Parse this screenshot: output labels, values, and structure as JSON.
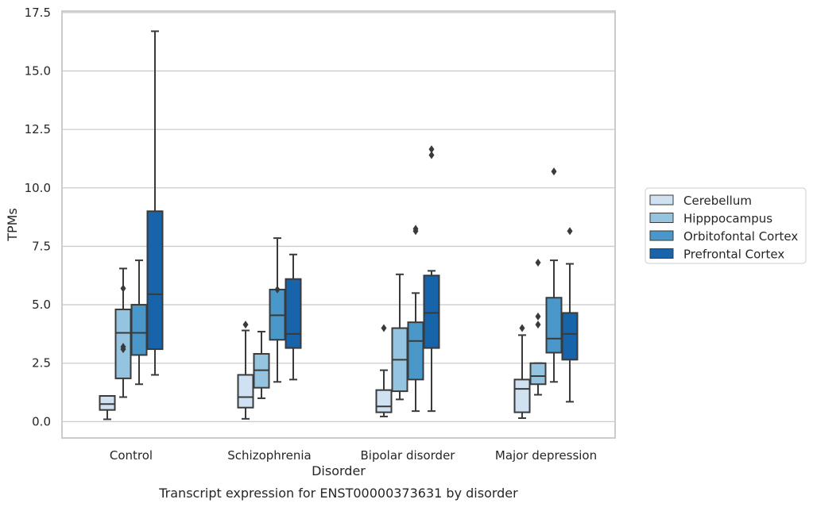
{
  "chart_data": {
    "type": "box",
    "title": "Transcript expression for ENST00000373631 by disorder",
    "xlabel": "Disorder",
    "ylabel": "TPMs",
    "ylim": [
      -0.7,
      17.5
    ],
    "yticks": [
      "0.0",
      "2.5",
      "5.0",
      "7.5",
      "10.0",
      "12.5",
      "15.0",
      "17.5"
    ],
    "grid": true,
    "legend_position": "right",
    "categories": [
      "Control",
      "Schizophrenia",
      "Bipolar disorder",
      "Major depression"
    ],
    "series": [
      {
        "name": "Cerebellum",
        "color": "#d0e1f2",
        "boxes": [
          {
            "whisker_low": 0.1,
            "q1": 0.5,
            "median": 0.75,
            "q3": 1.1,
            "whisker_high": 1.1,
            "outliers": []
          },
          {
            "whisker_low": 0.12,
            "q1": 0.6,
            "median": 1.05,
            "q3": 2.0,
            "whisker_high": 3.9,
            "outliers": [
              4.15
            ]
          },
          {
            "whisker_low": 0.22,
            "q1": 0.4,
            "median": 0.65,
            "q3": 1.35,
            "whisker_high": 2.2,
            "outliers": [
              4.0
            ]
          },
          {
            "whisker_low": 0.15,
            "q1": 0.4,
            "median": 1.4,
            "q3": 1.8,
            "whisker_high": 3.7,
            "outliers": [
              4.0
            ]
          }
        ]
      },
      {
        "name": "Hipppocampus",
        "color": "#94c4df",
        "boxes": [
          {
            "whisker_low": 1.05,
            "q1": 1.85,
            "median": 3.8,
            "q3": 4.8,
            "whisker_high": 6.55,
            "outliers": [
              3.1,
              3.2,
              5.7
            ]
          },
          {
            "whisker_low": 1.0,
            "q1": 1.45,
            "median": 2.2,
            "q3": 2.9,
            "whisker_high": 3.85,
            "outliers": []
          },
          {
            "whisker_low": 0.95,
            "q1": 1.3,
            "median": 2.65,
            "q3": 4.0,
            "whisker_high": 6.3,
            "outliers": []
          },
          {
            "whisker_low": 1.15,
            "q1": 1.6,
            "median": 1.95,
            "q3": 2.5,
            "whisker_high": 2.5,
            "outliers": [
              4.15,
              4.5,
              6.8
            ]
          }
        ]
      },
      {
        "name": "Orbitofontal Cortex",
        "color": "#4a98c9",
        "boxes": [
          {
            "whisker_low": 1.6,
            "q1": 2.85,
            "median": 3.8,
            "q3": 5.0,
            "whisker_high": 6.9,
            "outliers": []
          },
          {
            "whisker_low": 1.7,
            "q1": 3.5,
            "median": 4.55,
            "q3": 5.65,
            "whisker_high": 7.85,
            "outliers": [
              5.65
            ]
          },
          {
            "whisker_low": 0.45,
            "q1": 1.8,
            "median": 3.45,
            "q3": 4.25,
            "whisker_high": 5.5,
            "outliers": [
              8.15,
              8.25
            ]
          },
          {
            "whisker_low": 1.7,
            "q1": 2.95,
            "median": 3.55,
            "q3": 5.3,
            "whisker_high": 6.9,
            "outliers": [
              10.7
            ]
          }
        ]
      },
      {
        "name": "Prefrontal Cortex",
        "color": "#1764ab",
        "boxes": [
          {
            "whisker_low": 2.0,
            "q1": 3.1,
            "median": 5.45,
            "q3": 9.0,
            "whisker_high": 16.7,
            "outliers": []
          },
          {
            "whisker_low": 1.8,
            "q1": 3.15,
            "median": 3.75,
            "q3": 6.1,
            "whisker_high": 7.15,
            "outliers": []
          },
          {
            "whisker_low": 0.45,
            "q1": 3.15,
            "median": 4.65,
            "q3": 6.25,
            "whisker_high": 6.45,
            "outliers": [
              11.4,
              11.65
            ]
          },
          {
            "whisker_low": 0.85,
            "q1": 2.65,
            "median": 3.75,
            "q3": 4.65,
            "whisker_high": 6.75,
            "outliers": [
              8.15
            ]
          }
        ]
      }
    ]
  }
}
